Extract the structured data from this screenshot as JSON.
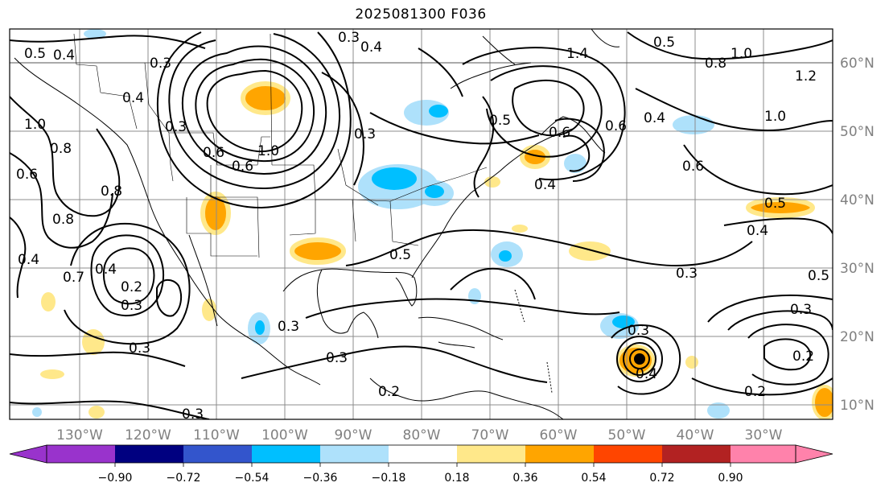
{
  "title": "2025081300 F036",
  "map": {
    "lon_labels": [
      "130°W",
      "120°W",
      "110°W",
      "100°W",
      "90°W",
      "80°W",
      "70°W",
      "60°W",
      "50°W",
      "40°W",
      "30°W"
    ],
    "lat_labels": [
      "60°N",
      "50°N",
      "40°N",
      "30°N",
      "20°N",
      "10°N"
    ],
    "contour_labels": [
      "0.5",
      "0.4",
      "0.3",
      "0.4",
      "1.0",
      "0.8",
      "0.6",
      "0.4",
      "0.3",
      "1.0",
      "0.8",
      "0.3",
      "0.4",
      "0.5",
      "0.6",
      "0.4",
      "1.0",
      "1.4",
      "0.8",
      "0.5",
      "0.6",
      "1.0",
      "1.2",
      "0.6",
      "0.4",
      "0.6",
      "0.3",
      "0.5",
      "0.4",
      "0.5",
      "0.4",
      "0.3",
      "0.2",
      "0.3",
      "0.3",
      "0.3",
      "0.2",
      "0.3",
      "0.3",
      "0.4",
      "0.3",
      "0.2",
      "0.5",
      "0.3",
      "0.6",
      "0.2",
      "0.8",
      "0.7"
    ]
  },
  "colorbar": {
    "tick_labels": [
      "−0.90",
      "−0.72",
      "−0.54",
      "−0.36",
      "−0.18",
      "0.18",
      "0.36",
      "0.54",
      "0.72",
      "0.90"
    ],
    "colors": [
      "#9933cc",
      "#000080",
      "#3355cc",
      "#00bfff",
      "#aee1fb",
      "#ffffff",
      "#ffe88a",
      "#ffa500",
      "#ff4500",
      "#b22222",
      "#ff82ab"
    ]
  }
}
